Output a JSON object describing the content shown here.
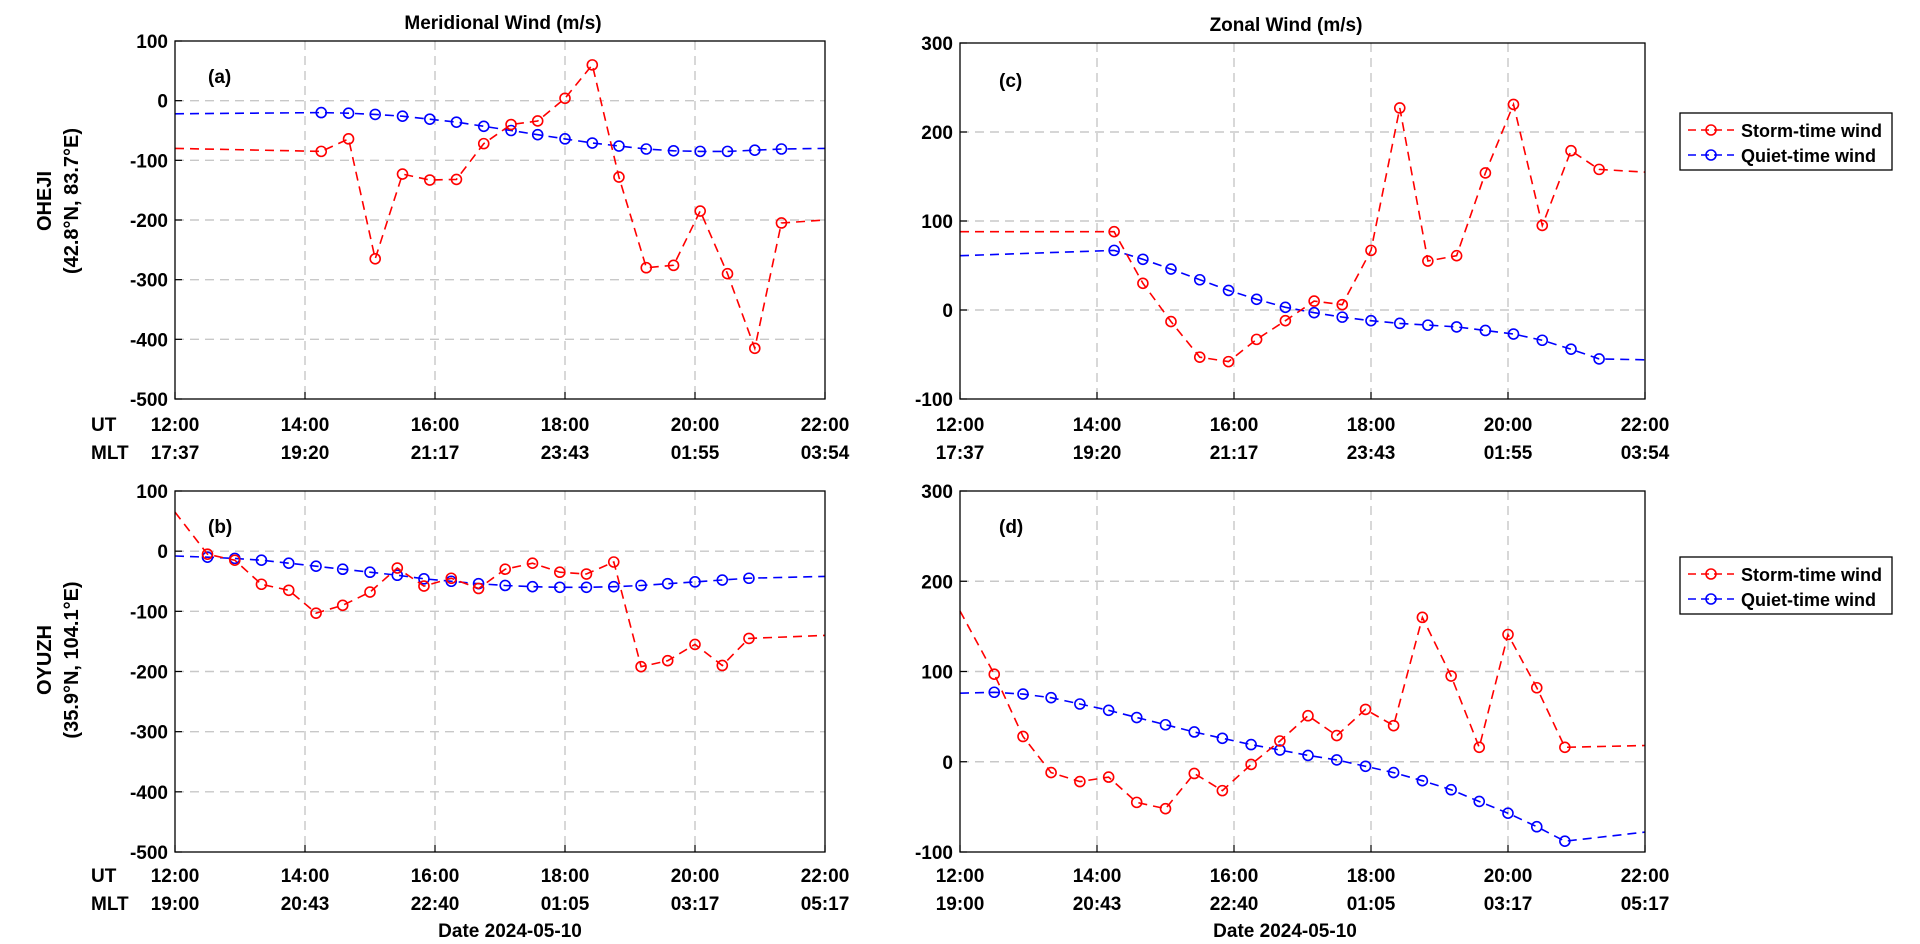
{
  "figure": {
    "row_labels": [
      {
        "name": "OHEJI",
        "coords": "(42.8°N, 83.7°E)"
      },
      {
        "name": "OYUZH",
        "coords": "(35.9°N, 104.1°E)"
      }
    ],
    "ut_label": "UT",
    "mlt_label": "MLT",
    "xlabel": "Date 2024-05-10",
    "ut_ticks": [
      "12:00",
      "14:00",
      "16:00",
      "18:00",
      "20:00",
      "22:00"
    ],
    "mlt_ticks_row1": [
      "17:37",
      "19:20",
      "21:17",
      "23:43",
      "01:55",
      "03:54"
    ],
    "mlt_ticks_row2": [
      "19:00",
      "20:43",
      "22:40",
      "01:05",
      "03:17",
      "05:17"
    ],
    "legend": {
      "storm": "Storm-time wind",
      "quiet": "Quiet-time wind"
    },
    "colors": {
      "storm": "#ff0000",
      "quiet": "#0000ff",
      "grid": "#c8c8c8"
    }
  },
  "chart_data": [
    {
      "id": "a",
      "tag": "(a)",
      "type": "line",
      "title": "Meridional Wind (m/s)",
      "ylim": [
        -500,
        100
      ],
      "yticks": [
        100,
        0,
        -100,
        -200,
        -300,
        -400,
        -500
      ],
      "xlim": [
        12,
        22
      ],
      "series": [
        {
          "name": "Storm-time wind",
          "x": [
            14.25,
            14.67,
            15.08,
            15.5,
            15.92,
            16.33,
            16.75,
            17.17,
            17.58,
            18.0,
            18.42,
            18.83,
            19.25,
            19.67,
            20.08,
            20.5,
            20.92,
            21.33
          ],
          "y": [
            -85,
            -64,
            -265,
            -123,
            -133,
            -132,
            -72,
            -40,
            -34,
            4,
            60,
            -128,
            -280,
            -276,
            -185,
            -290,
            -415,
            -205
          ],
          "line_start": {
            "x": 12.0,
            "y": -80
          },
          "line_end": {
            "x": 22.0,
            "y": -200
          }
        },
        {
          "name": "Quiet-time wind",
          "x": [
            14.25,
            14.67,
            15.08,
            15.5,
            15.92,
            16.33,
            16.75,
            17.17,
            17.58,
            18.0,
            18.42,
            18.83,
            19.25,
            19.67,
            20.08,
            20.5,
            20.92,
            21.33
          ],
          "y": [
            -20,
            -21,
            -23,
            -26,
            -31,
            -36,
            -43,
            -50,
            -57,
            -64,
            -71,
            -76,
            -81,
            -84,
            -85,
            -85,
            -83,
            -81
          ],
          "line_start": {
            "x": 12.0,
            "y": -22
          },
          "line_end": {
            "x": 22.0,
            "y": -80
          }
        }
      ]
    },
    {
      "id": "b",
      "tag": "(b)",
      "type": "line",
      "title": "",
      "ylim": [
        -500,
        100
      ],
      "yticks": [
        100,
        0,
        -100,
        -200,
        -300,
        -400,
        -500
      ],
      "xlim": [
        12,
        22
      ],
      "series": [
        {
          "name": "Storm-time wind",
          "x": [
            12.5,
            12.92,
            13.33,
            13.75,
            14.17,
            14.58,
            15.0,
            15.42,
            15.83,
            16.25,
            16.67,
            17.08,
            17.5,
            17.92,
            18.33,
            18.75,
            19.17,
            19.58,
            20.0,
            20.42,
            20.83
          ],
          "y": [
            -5,
            -15,
            -55,
            -65,
            -103,
            -90,
            -68,
            -28,
            -58,
            -45,
            -62,
            -30,
            -20,
            -35,
            -38,
            -18,
            -192,
            -182,
            -155,
            -190,
            -145
          ],
          "line_start": {
            "x": 12.0,
            "y": 65
          },
          "line_end": {
            "x": 22.0,
            "y": -140
          }
        },
        {
          "name": "Quiet-time wind",
          "x": [
            12.5,
            12.92,
            13.33,
            13.75,
            14.17,
            14.58,
            15.0,
            15.42,
            15.83,
            16.25,
            16.67,
            17.08,
            17.5,
            17.92,
            18.33,
            18.75,
            19.17,
            19.58,
            20.0,
            20.42,
            20.83
          ],
          "y": [
            -10,
            -12,
            -15,
            -20,
            -25,
            -30,
            -35,
            -40,
            -46,
            -50,
            -54,
            -57,
            -59,
            -60,
            -60,
            -59,
            -57,
            -54,
            -51,
            -48,
            -45
          ],
          "line_start": {
            "x": 12.0,
            "y": -8
          },
          "line_end": {
            "x": 22.0,
            "y": -42
          }
        }
      ]
    },
    {
      "id": "c",
      "tag": "(c)",
      "type": "line",
      "title": "Zonal Wind (m/s)",
      "ylim": [
        -100,
        300
      ],
      "yticks": [
        300,
        200,
        100,
        0,
        -100
      ],
      "xlim": [
        12,
        22
      ],
      "series": [
        {
          "name": "Storm-time wind",
          "x": [
            14.25,
            14.67,
            15.08,
            15.5,
            15.92,
            16.33,
            16.75,
            17.17,
            17.58,
            18.0,
            18.42,
            18.83,
            19.25,
            19.67,
            20.08,
            20.5,
            20.92,
            21.33
          ],
          "y": [
            88,
            30,
            -13,
            -53,
            -58,
            -33,
            -12,
            10,
            6,
            67,
            227,
            55,
            61,
            154,
            231,
            95,
            179,
            158
          ],
          "line_start": {
            "x": 12.0,
            "y": 88
          },
          "line_end": {
            "x": 22.0,
            "y": 155
          }
        },
        {
          "name": "Quiet-time wind",
          "x": [
            14.25,
            14.67,
            15.08,
            15.5,
            15.92,
            16.33,
            16.75,
            17.17,
            17.58,
            18.0,
            18.42,
            18.83,
            19.25,
            19.67,
            20.08,
            20.5,
            20.92,
            21.33
          ],
          "y": [
            67,
            57,
            46,
            34,
            22,
            12,
            3,
            -3,
            -8,
            -12,
            -15,
            -17,
            -19,
            -23,
            -27,
            -34,
            -44,
            -55
          ],
          "line_start": {
            "x": 12.0,
            "y": 61
          },
          "line_end": {
            "x": 22.0,
            "y": -56
          }
        }
      ]
    },
    {
      "id": "d",
      "tag": "(d)",
      "type": "line",
      "title": "",
      "ylim": [
        -100,
        300
      ],
      "yticks": [
        300,
        200,
        100,
        0,
        -100
      ],
      "xlim": [
        12,
        22
      ],
      "series": [
        {
          "name": "Storm-time wind",
          "x": [
            12.5,
            12.92,
            13.33,
            13.75,
            14.17,
            14.58,
            15.0,
            15.42,
            15.83,
            16.25,
            16.67,
            17.08,
            17.5,
            17.92,
            18.33,
            18.75,
            19.17,
            19.58,
            20.0,
            20.42,
            20.83
          ],
          "y": [
            97,
            28,
            -12,
            -22,
            -17,
            -45,
            -52,
            -13,
            -32,
            -3,
            23,
            51,
            29,
            58,
            40,
            160,
            95,
            16,
            141,
            82,
            16
          ],
          "line_start": {
            "x": 12.0,
            "y": 167
          },
          "line_end": {
            "x": 22.0,
            "y": 18
          }
        },
        {
          "name": "Quiet-time wind",
          "x": [
            12.5,
            12.92,
            13.33,
            13.75,
            14.17,
            14.58,
            15.0,
            15.42,
            15.83,
            16.25,
            16.67,
            17.08,
            17.5,
            17.92,
            18.33,
            18.75,
            19.17,
            19.58,
            20.0,
            20.42,
            20.83
          ],
          "y": [
            77,
            75,
            71,
            64,
            57,
            49,
            41,
            33,
            26,
            19,
            13,
            7,
            2,
            -5,
            -12,
            -21,
            -31,
            -44,
            -57,
            -72,
            -88
          ],
          "line_start": {
            "x": 12.0,
            "y": 76
          },
          "line_end": {
            "x": 22.0,
            "y": -78
          }
        }
      ]
    }
  ]
}
